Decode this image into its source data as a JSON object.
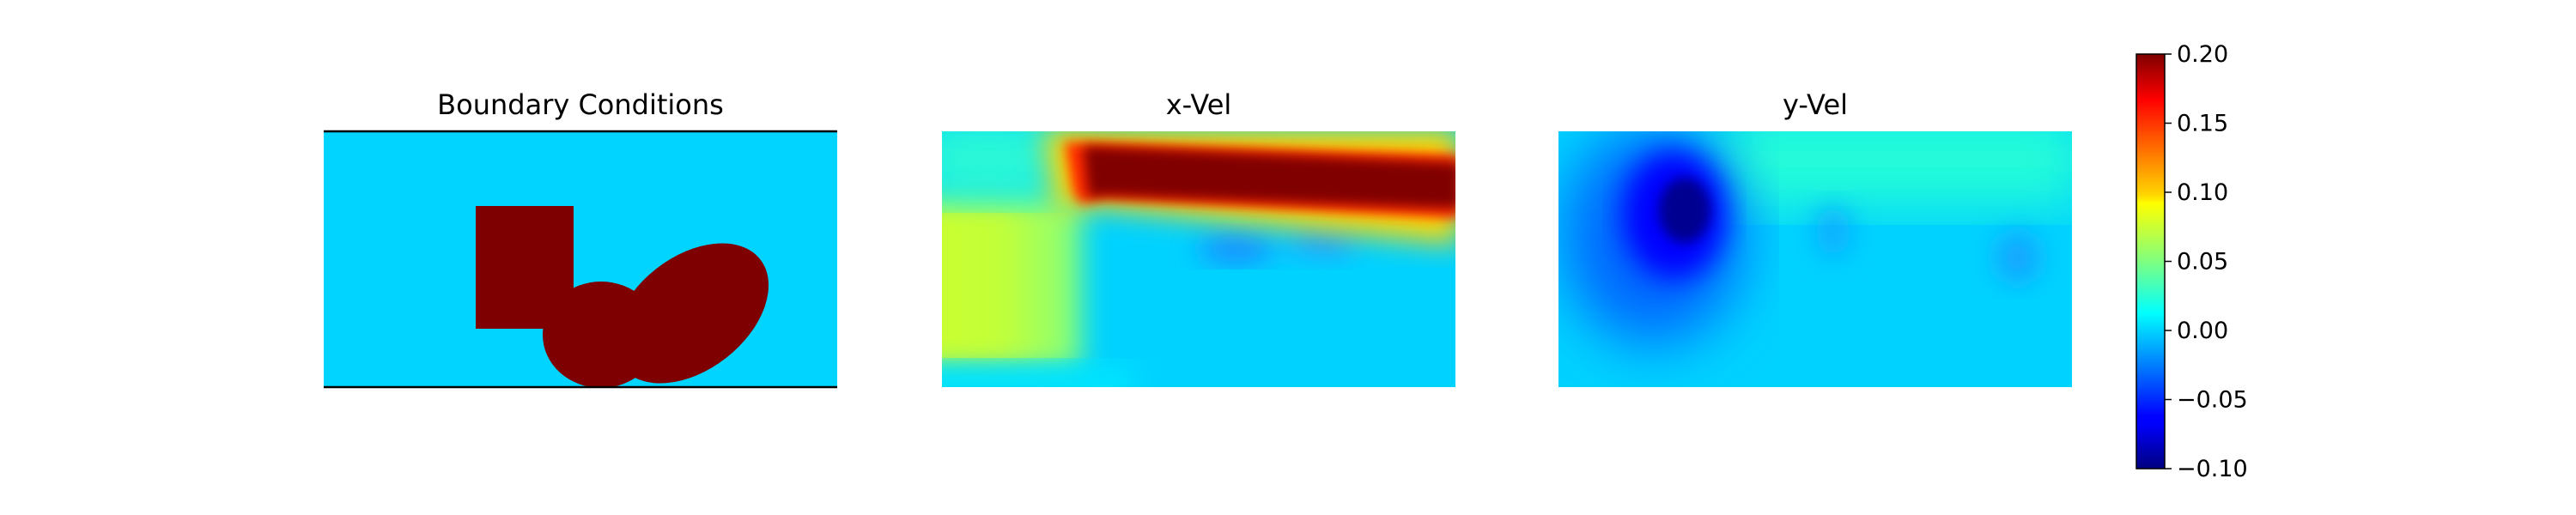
{
  "chart_data": [
    {
      "type": "heatmap",
      "title": "Boundary Conditions",
      "values": {
        "fluid": 0.0,
        "obstacle": 0.2
      },
      "axis": "off",
      "obstacles": [
        {
          "shape": "rectangle",
          "x": [
            0.3,
            0.49
          ],
          "y": [
            0.22,
            0.7
          ]
        },
        {
          "shape": "ellipse",
          "center": [
            0.54,
            0.8
          ],
          "radius": [
            0.1,
            0.25
          ]
        },
        {
          "shape": "ellipse",
          "center": [
            0.66,
            0.64
          ],
          "radius": [
            0.15,
            0.35
          ],
          "rotation_deg": -30
        }
      ],
      "walls": [
        "top",
        "bottom"
      ]
    },
    {
      "type": "heatmap",
      "title": "x-Vel",
      "axis": "off",
      "value_range_shown": [
        -0.05,
        0.2
      ]
    },
    {
      "type": "heatmap",
      "title": "y-Vel",
      "axis": "off",
      "value_range_shown": [
        -0.1,
        0.05
      ]
    }
  ],
  "colorbar": {
    "colormap": "jet",
    "vmin": -0.1,
    "vmax": 0.2,
    "ticks": [
      0.2,
      0.15,
      0.1,
      0.05,
      0.0,
      -0.05,
      -0.1
    ],
    "tick_labels": [
      "0.20",
      "0.15",
      "0.10",
      "0.05",
      "0.00",
      "−0.05",
      "−0.10"
    ]
  }
}
